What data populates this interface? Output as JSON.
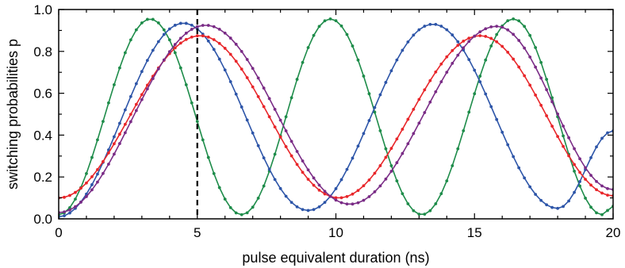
{
  "chart_data": {
    "type": "line",
    "title": "",
    "xlabel": "pulse equivalent duration (ns)",
    "ylabel": "switching probabilities p",
    "xlim": [
      0,
      20
    ],
    "ylim": [
      0,
      1.0
    ],
    "x_ticks": [
      0,
      5,
      10,
      15,
      20
    ],
    "x_tick_labels": [
      "0",
      "5",
      "10",
      "15",
      "20"
    ],
    "y_ticks": [
      0,
      0.2,
      0.4,
      0.6,
      0.8,
      1.0
    ],
    "y_tick_labels": [
      "0.0",
      "0.2",
      "0.4",
      "0.6",
      "0.8",
      "1.0"
    ],
    "grid": false,
    "legend": "none",
    "marker_step_ns": 0.2,
    "reference_line": {
      "x": 5,
      "style": "dashed",
      "color": "#000000"
    },
    "series": [
      {
        "color": "#1e8c4a",
        "x": [
          0,
          3.3,
          6.6,
          9.8,
          13.1,
          16.4,
          19.6,
          20
        ],
        "y": [
          0.02,
          0.955,
          0.02,
          0.955,
          0.02,
          0.955,
          0.02,
          0.06
        ]
      },
      {
        "color": "#2d55a8",
        "x": [
          0,
          4.5,
          9.0,
          13.5,
          18.0,
          20
        ],
        "y": [
          0.01,
          0.935,
          0.04,
          0.93,
          0.05,
          0.42
        ]
      },
      {
        "color": "#e8262a",
        "x": [
          0,
          5.1,
          10.1,
          15.2,
          20
        ],
        "y": [
          0.1,
          0.875,
          0.1,
          0.875,
          0.11
        ]
      },
      {
        "color": "#7a2c86",
        "x": [
          0,
          5.3,
          10.5,
          15.8,
          20
        ],
        "y": [
          0.03,
          0.925,
          0.07,
          0.92,
          0.14
        ]
      }
    ]
  }
}
